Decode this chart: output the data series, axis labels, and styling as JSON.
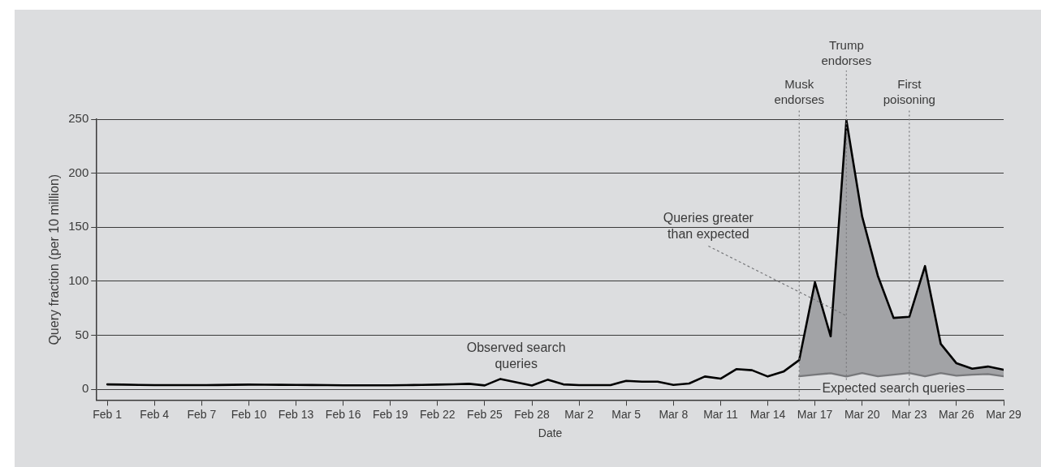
{
  "chart_data": {
    "type": "line",
    "xlabel": "Date",
    "ylabel": "Query fraction (per 10 million)",
    "x": [
      "--02-01",
      "--02-02",
      "--02-03",
      "--02-04",
      "--02-05",
      "--02-06",
      "--02-07",
      "--02-08",
      "--02-09",
      "--02-10",
      "--02-11",
      "--02-12",
      "--02-13",
      "--02-14",
      "--02-15",
      "--02-16",
      "--02-17",
      "--02-18",
      "--02-19",
      "--02-20",
      "--02-21",
      "--02-22",
      "--02-23",
      "--02-24",
      "--02-25",
      "--02-26",
      "--02-27",
      "--02-28",
      "--02-29",
      "--03-01",
      "--03-02",
      "--03-03",
      "--03-04",
      "--03-05",
      "--03-06",
      "--03-07",
      "--03-08",
      "--03-09",
      "--03-10",
      "--03-11",
      "--03-12",
      "--03-13",
      "--03-14",
      "--03-15",
      "--03-16",
      "--03-17",
      "--03-18",
      "--03-19",
      "--03-20",
      "--03-21",
      "--03-22",
      "--03-23",
      "--03-24",
      "--03-25",
      "--03-26",
      "--03-27",
      "--03-28",
      "--03-29"
    ],
    "series": [
      {
        "name": "Observed search queries",
        "color": "#000000",
        "values": [
          4.5,
          4.3,
          4,
          3.8,
          3.8,
          3.8,
          3.8,
          3.9,
          4.1,
          4.3,
          4.2,
          4.1,
          4,
          3.9,
          3.8,
          3.6,
          3.6,
          3.6,
          3.6,
          3.8,
          4,
          4.3,
          4.6,
          5,
          3.5,
          9.5,
          6.5,
          3.5,
          8.8,
          4.5,
          3.8,
          3.8,
          3.8,
          7.8,
          7,
          7,
          4,
          5.3,
          11.8,
          9.8,
          18.6,
          17.6,
          11.8,
          16.3,
          27,
          99,
          49,
          249,
          160,
          105,
          66,
          67,
          114,
          42,
          24,
          19,
          21,
          18
        ]
      },
      {
        "name": "Expected search queries",
        "color": "#77787b",
        "values": [
          null,
          null,
          null,
          null,
          null,
          null,
          null,
          null,
          null,
          null,
          null,
          null,
          null,
          null,
          null,
          null,
          null,
          null,
          null,
          null,
          null,
          null,
          null,
          null,
          null,
          null,
          null,
          null,
          null,
          null,
          null,
          null,
          null,
          null,
          null,
          null,
          null,
          null,
          null,
          null,
          null,
          null,
          null,
          null,
          12,
          13.5,
          14.8,
          11.8,
          15,
          12,
          13.5,
          15,
          12,
          15,
          12.5,
          13.5,
          14,
          12
        ],
        "lower": [
          null,
          null,
          null,
          null,
          null,
          null,
          null,
          null,
          null,
          null,
          null,
          null,
          null,
          null,
          null,
          null,
          null,
          null,
          null,
          null,
          null,
          null,
          null,
          null,
          null,
          null,
          null,
          null,
          null,
          null,
          null,
          null,
          null,
          null,
          null,
          null,
          null,
          null,
          null,
          null,
          null,
          null,
          null,
          null,
          12,
          13.5,
          14.8,
          11.8,
          15,
          12,
          13.5,
          15,
          12,
          15,
          12.5,
          13.5,
          14,
          12
        ],
        "upper": [
          null,
          null,
          null,
          null,
          null,
          null,
          null,
          null,
          null,
          null,
          null,
          null,
          null,
          null,
          null,
          null,
          null,
          null,
          null,
          null,
          null,
          null,
          null,
          null,
          null,
          null,
          null,
          null,
          null,
          null,
          null,
          null,
          null,
          null,
          null,
          null,
          null,
          null,
          null,
          null,
          null,
          null,
          null,
          null,
          27,
          99,
          49,
          249,
          160,
          105,
          66,
          67,
          114,
          42,
          24,
          19,
          21,
          18
        ]
      }
    ],
    "xlim": [
      "--01-31T08:00",
      "--03-29"
    ],
    "xticks": [
      {
        "value": "--02-01",
        "label": "Feb 1"
      },
      {
        "value": "--02-04",
        "label": "Feb 4"
      },
      {
        "value": "--02-07",
        "label": "Feb 7"
      },
      {
        "value": "--02-10",
        "label": "Feb 10"
      },
      {
        "value": "--02-13",
        "label": "Feb 13"
      },
      {
        "value": "--02-16",
        "label": "Feb 16"
      },
      {
        "value": "--02-19",
        "label": "Feb 19"
      },
      {
        "value": "--02-22",
        "label": "Feb 22"
      },
      {
        "value": "--02-25",
        "label": "Feb 25"
      },
      {
        "value": "--02-28",
        "label": "Feb 28"
      },
      {
        "value": "--03-02",
        "label": "Mar 2"
      },
      {
        "value": "--03-05",
        "label": "Mar 5"
      },
      {
        "value": "--03-08",
        "label": "Mar 8"
      },
      {
        "value": "--03-11",
        "label": "Mar 11"
      },
      {
        "value": "--03-14",
        "label": "Mar 14"
      },
      {
        "value": "--03-17",
        "label": "Mar 17"
      },
      {
        "value": "--03-20",
        "label": "Mar 20"
      },
      {
        "value": "--03-23",
        "label": "Mar 23"
      },
      {
        "value": "--03-26",
        "label": "Mar 26"
      },
      {
        "value": "--03-29",
        "label": "Mar 29"
      }
    ],
    "ylim": [
      -10,
      250
    ],
    "yticks": [
      0,
      50,
      100,
      150,
      200,
      250
    ],
    "grid": "y",
    "legend": false,
    "marker": "none",
    "line_style": "solid",
    "ref_lines": [
      {
        "axis": "x",
        "value": "--03-16",
        "label": "Musk endorses",
        "color": "#77787b",
        "line_style": "dotted"
      },
      {
        "axis": "x",
        "value": "--03-19",
        "label": "Trump endorses",
        "color": "#77787b",
        "line_style": "dotted"
      },
      {
        "axis": "x",
        "value": "--03-23",
        "label": "First poisoning",
        "color": "#77787b",
        "line_style": "dotted"
      }
    ],
    "annotations": [
      {
        "text": "Queries greater than expected",
        "x": "--03-19",
        "y": 68
      }
    ]
  }
}
